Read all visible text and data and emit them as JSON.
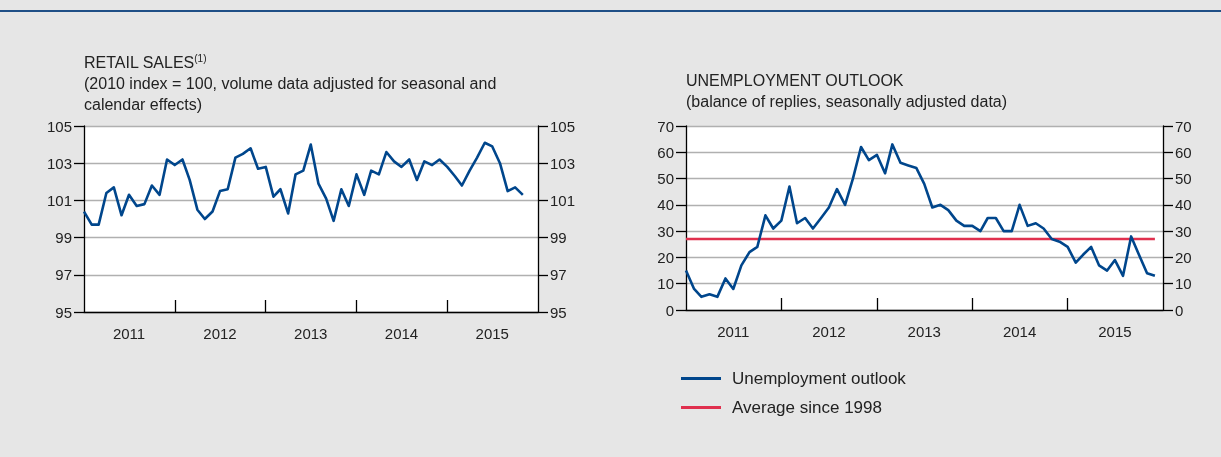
{
  "chart_data": [
    {
      "type": "line",
      "title": "RETAIL SALES$^{(1)}$",
      "subtitle": "(2010 index = 100, volume data adjusted for seasonal and calendar effects)",
      "x": [
        "2011-01",
        "2011-02",
        "2011-03",
        "2011-04",
        "2011-05",
        "2011-06",
        "2011-07",
        "2011-08",
        "2011-09",
        "2011-10",
        "2011-11",
        "2011-12",
        "2012-01",
        "2012-02",
        "2012-03",
        "2012-04",
        "2012-05",
        "2012-06",
        "2012-07",
        "2012-08",
        "2012-09",
        "2012-10",
        "2012-11",
        "2012-12",
        "2013-01",
        "2013-02",
        "2013-03",
        "2013-04",
        "2013-05",
        "2013-06",
        "2013-07",
        "2013-08",
        "2013-09",
        "2013-10",
        "2013-11",
        "2013-12",
        "2014-01",
        "2014-02",
        "2014-03",
        "2014-04",
        "2014-05",
        "2014-06",
        "2014-07",
        "2014-08",
        "2014-09",
        "2014-10",
        "2014-11",
        "2014-12",
        "2015-01",
        "2015-02",
        "2015-03",
        "2015-04",
        "2015-05",
        "2015-06",
        "2015-07",
        "2015-08",
        "2015-09",
        "2015-10",
        "2015-11"
      ],
      "series": [
        {
          "color": "#00468c",
          "values": [
            100.4,
            99.7,
            99.7,
            101.4,
            101.7,
            100.2,
            101.3,
            100.7,
            100.8,
            101.8,
            101.3,
            103.2,
            102.9,
            103.2,
            102.1,
            100.5,
            100.0,
            100.4,
            101.5,
            101.6,
            103.3,
            103.5,
            103.8,
            102.7,
            102.8,
            101.2,
            101.6,
            100.3,
            102.4,
            102.6,
            104.0,
            101.9,
            101.1,
            99.9,
            101.6,
            100.7,
            102.4,
            101.3,
            102.6,
            102.4,
            103.6,
            103.1,
            102.8,
            103.2,
            102.1,
            103.1,
            102.9,
            103.2,
            102.8,
            102.3,
            101.8,
            102.6,
            103.3,
            104.1,
            103.9,
            103.0,
            101.5,
            101.7,
            101.3
          ]
        }
      ],
      "xlim": [
        "2011-01",
        "2016-01"
      ],
      "xticks": [
        {
          "value": "2012-01",
          "label": null
        },
        {
          "value": "2013-01",
          "label": null
        },
        {
          "value": "2014-01",
          "label": null
        },
        {
          "value": "2015-01",
          "label": null
        },
        {
          "value": "2011-07",
          "label": "2011"
        },
        {
          "value": "2012-07",
          "label": "2012"
        },
        {
          "value": "2013-07",
          "label": "2013"
        },
        {
          "value": "2014-07",
          "label": "2014"
        },
        {
          "value": "2015-07",
          "label": "2015"
        }
      ],
      "ylim": [
        95,
        105
      ],
      "yticks": [
        95,
        97,
        99,
        101,
        103,
        105
      ],
      "y2lim": [
        95,
        105
      ],
      "y2ticks": [
        95,
        97,
        99,
        101,
        103,
        105
      ],
      "grid": "y",
      "marker": "none",
      "line_style": "solid",
      "legend": false
    },
    {
      "type": "line",
      "title": "UNEMPLOYMENT OUTLOOK",
      "subtitle": "(balance of replies, seasonally adjusted data)",
      "x": [
        "2011-01",
        "2011-02",
        "2011-03",
        "2011-04",
        "2011-05",
        "2011-06",
        "2011-07",
        "2011-08",
        "2011-09",
        "2011-10",
        "2011-11",
        "2011-12",
        "2012-01",
        "2012-02",
        "2012-03",
        "2012-04",
        "2012-05",
        "2012-06",
        "2012-07",
        "2012-08",
        "2012-09",
        "2012-10",
        "2012-11",
        "2012-12",
        "2013-01",
        "2013-02",
        "2013-03",
        "2013-04",
        "2013-05",
        "2013-06",
        "2013-07",
        "2013-08",
        "2013-09",
        "2013-10",
        "2013-11",
        "2013-12",
        "2014-01",
        "2014-02",
        "2014-03",
        "2014-04",
        "2014-05",
        "2014-06",
        "2014-07",
        "2014-08",
        "2014-09",
        "2014-10",
        "2014-11",
        "2014-12",
        "2015-01",
        "2015-02",
        "2015-03",
        "2015-04",
        "2015-05",
        "2015-06",
        "2015-07",
        "2015-08",
        "2015-09",
        "2015-10",
        "2015-11",
        "2015-12"
      ],
      "series": [
        {
          "name": "Unemployment outlook",
          "color": "#00468c",
          "values": [
            15,
            8,
            5,
            6,
            5,
            12,
            8,
            17,
            22,
            24,
            36,
            31,
            34,
            47,
            33,
            35,
            31,
            35,
            39,
            46,
            40,
            50,
            62,
            57,
            59,
            52,
            63,
            56,
            55,
            54,
            48,
            39,
            40,
            38,
            34,
            32,
            32,
            30,
            35,
            35,
            30,
            30,
            40,
            32,
            33,
            31,
            27,
            26,
            24,
            18,
            21,
            24,
            17,
            15,
            19,
            13,
            28,
            21,
            14,
            13
          ]
        }
      ],
      "ref_lines": [
        {
          "axis": "y",
          "value": 27,
          "label": "Average since 1998",
          "color": "#e0304e"
        }
      ],
      "xlim": [
        "2011-01",
        "2016-01"
      ],
      "xticks": [
        {
          "value": "2012-01",
          "label": null
        },
        {
          "value": "2013-01",
          "label": null
        },
        {
          "value": "2014-01",
          "label": null
        },
        {
          "value": "2015-01",
          "label": null
        },
        {
          "value": "2011-07",
          "label": "2011"
        },
        {
          "value": "2012-07",
          "label": "2012"
        },
        {
          "value": "2013-07",
          "label": "2013"
        },
        {
          "value": "2014-07",
          "label": "2014"
        },
        {
          "value": "2015-07",
          "label": "2015"
        }
      ],
      "ylim": [
        0,
        70
      ],
      "yticks": [
        0,
        10,
        20,
        30,
        40,
        50,
        60,
        70
      ],
      "y2lim": [
        0,
        70
      ],
      "y2ticks": [
        0,
        10,
        20,
        30,
        40,
        50,
        60,
        70
      ],
      "grid": "y",
      "marker": "none",
      "line_style": "solid",
      "legend": "bottom"
    }
  ]
}
